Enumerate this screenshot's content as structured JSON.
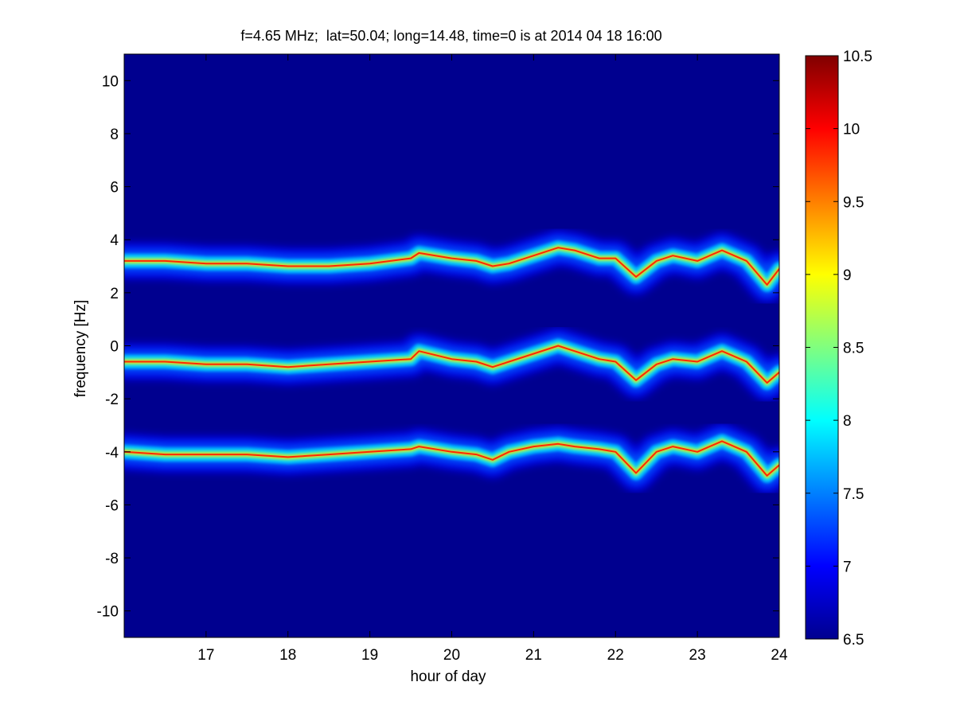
{
  "chart_data": {
    "type": "heatmap",
    "title": "f=4.65 MHz;  lat=50.04; long=14.48, time=0 is at 2014 04 18 16:00",
    "xlabel": "hour of day",
    "ylabel": "frequency [Hz]",
    "xlim": [
      16.0,
      24.0
    ],
    "ylim": [
      -11.0,
      11.0
    ],
    "x_ticks": [
      "17",
      "18",
      "19",
      "20",
      "21",
      "22",
      "23",
      "24"
    ],
    "x_tick_values": [
      17,
      18,
      19,
      20,
      21,
      22,
      23,
      24
    ],
    "y_ticks": [
      "10",
      "8",
      "6",
      "4",
      "2",
      "0",
      "-2",
      "-4",
      "-6",
      "-8",
      "-10"
    ],
    "y_tick_values": [
      10,
      8,
      6,
      4,
      2,
      0,
      -2,
      -4,
      -6,
      -8,
      -10
    ],
    "colorbar": {
      "range": [
        6.5,
        10.5
      ],
      "ticks": [
        "10.5",
        "10",
        "9.5",
        "9",
        "8.5",
        "8",
        "7.5",
        "7",
        "6.5"
      ],
      "tick_values": [
        10.5,
        10,
        9.5,
        9,
        8.5,
        8,
        7.5,
        7,
        6.5
      ],
      "colormap": "jet"
    },
    "background_value": 6.5,
    "series": [
      {
        "x": [
          16.0,
          16.5,
          17.0,
          17.5,
          18.0,
          18.5,
          19.0,
          19.5,
          19.6,
          20.0,
          20.3,
          20.5,
          20.7,
          21.0,
          21.3,
          21.5,
          21.8,
          22.0,
          22.25,
          22.5,
          22.7,
          23.0,
          23.3,
          23.6,
          23.85,
          24.0
        ],
        "y": [
          3.2,
          3.2,
          3.1,
          3.1,
          3.0,
          3.0,
          3.1,
          3.3,
          3.5,
          3.3,
          3.2,
          3.0,
          3.1,
          3.4,
          3.7,
          3.6,
          3.3,
          3.3,
          2.6,
          3.2,
          3.4,
          3.2,
          3.6,
          3.2,
          2.3,
          2.9
        ]
      },
      {
        "x": [
          16.0,
          16.5,
          17.0,
          17.5,
          18.0,
          18.5,
          19.0,
          19.5,
          19.6,
          20.0,
          20.3,
          20.5,
          20.7,
          21.0,
          21.3,
          21.5,
          21.8,
          22.0,
          22.25,
          22.5,
          22.7,
          23.0,
          23.3,
          23.6,
          23.85,
          24.0
        ],
        "y": [
          -0.6,
          -0.6,
          -0.7,
          -0.7,
          -0.8,
          -0.7,
          -0.6,
          -0.5,
          -0.2,
          -0.5,
          -0.6,
          -0.8,
          -0.6,
          -0.3,
          0.0,
          -0.2,
          -0.5,
          -0.6,
          -1.3,
          -0.7,
          -0.5,
          -0.6,
          -0.2,
          -0.6,
          -1.4,
          -1.0
        ]
      },
      {
        "x": [
          16.0,
          16.5,
          17.0,
          17.5,
          18.0,
          18.5,
          19.0,
          19.5,
          19.6,
          20.0,
          20.3,
          20.5,
          20.7,
          21.0,
          21.3,
          21.5,
          21.8,
          22.0,
          22.25,
          22.5,
          22.7,
          23.0,
          23.3,
          23.6,
          23.85,
          24.0
        ],
        "y": [
          -4.0,
          -4.1,
          -4.1,
          -4.1,
          -4.2,
          -4.1,
          -4.0,
          -3.9,
          -3.8,
          -4.0,
          -4.1,
          -4.3,
          -4.0,
          -3.8,
          -3.7,
          -3.8,
          -3.9,
          -4.0,
          -4.8,
          -4.0,
          -3.8,
          -4.0,
          -3.6,
          -4.0,
          -4.9,
          -4.5
        ]
      }
    ]
  }
}
